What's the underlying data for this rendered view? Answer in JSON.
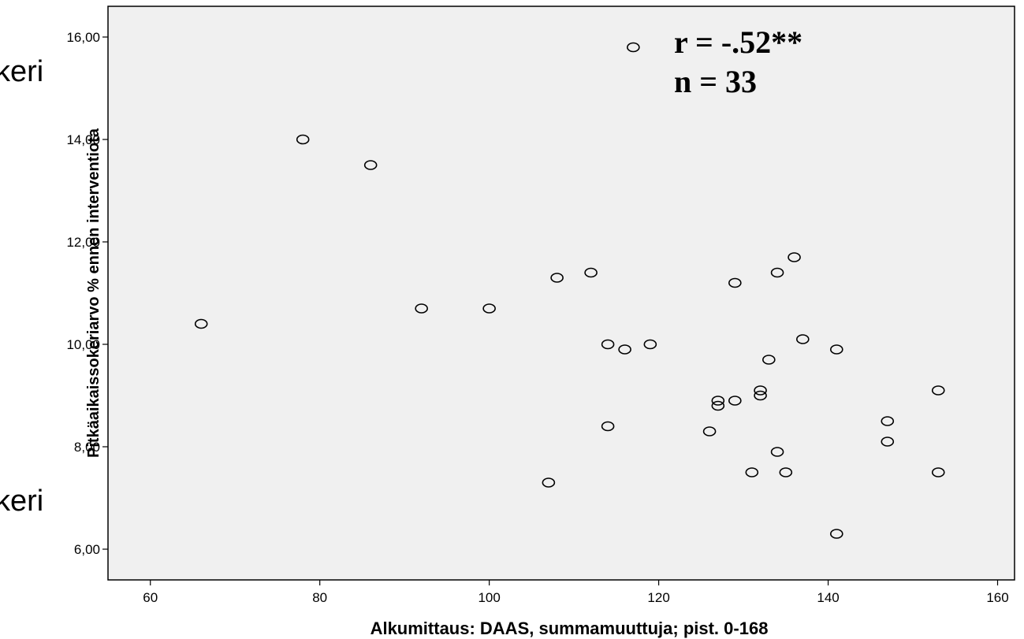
{
  "background_fragments": [
    "keri",
    "keri"
  ],
  "chart_data": {
    "type": "scatter",
    "xlabel": "Alkumittaus: DAAS, summamuuttuja; pist. 0-168",
    "ylabel": "Pitkäaikaissokeriarvo % ennen interventiota",
    "xlim": [
      55,
      162
    ],
    "ylim": [
      5.4,
      16.6
    ],
    "xticks": [
      60,
      80,
      100,
      120,
      140,
      160
    ],
    "xtick_labels": [
      "60",
      "80",
      "100",
      "120",
      "140",
      "160"
    ],
    "yticks": [
      6,
      8,
      10,
      12,
      14,
      16
    ],
    "ytick_labels": [
      "6,00",
      "8,00",
      "10,00",
      "12,00",
      "14,00",
      "16,00"
    ],
    "annotations": [
      "r = -.52**",
      "n = 33"
    ],
    "grid": false,
    "plot_background": "#f0f0f0",
    "marker": "open-circle",
    "points": [
      {
        "x": 66,
        "y": 10.4
      },
      {
        "x": 78,
        "y": 14.0
      },
      {
        "x": 86,
        "y": 13.5
      },
      {
        "x": 92,
        "y": 10.7
      },
      {
        "x": 100,
        "y": 10.7
      },
      {
        "x": 107,
        "y": 7.3
      },
      {
        "x": 108,
        "y": 11.3
      },
      {
        "x": 112,
        "y": 11.4
      },
      {
        "x": 114,
        "y": 10.0
      },
      {
        "x": 114,
        "y": 8.4
      },
      {
        "x": 116,
        "y": 9.9
      },
      {
        "x": 117,
        "y": 15.8
      },
      {
        "x": 119,
        "y": 10.0
      },
      {
        "x": 126,
        "y": 8.3
      },
      {
        "x": 127,
        "y": 8.9
      },
      {
        "x": 127,
        "y": 8.8
      },
      {
        "x": 129,
        "y": 11.2
      },
      {
        "x": 129,
        "y": 8.9
      },
      {
        "x": 131,
        "y": 7.5
      },
      {
        "x": 132,
        "y": 9.1
      },
      {
        "x": 132,
        "y": 9.0
      },
      {
        "x": 133,
        "y": 9.7
      },
      {
        "x": 134,
        "y": 11.4
      },
      {
        "x": 134,
        "y": 7.9
      },
      {
        "x": 135,
        "y": 7.5
      },
      {
        "x": 136,
        "y": 11.7
      },
      {
        "x": 137,
        "y": 10.1
      },
      {
        "x": 141,
        "y": 9.9
      },
      {
        "x": 141,
        "y": 6.3
      },
      {
        "x": 147,
        "y": 8.5
      },
      {
        "x": 147,
        "y": 8.1
      },
      {
        "x": 153,
        "y": 9.1
      },
      {
        "x": 153,
        "y": 7.5
      }
    ]
  }
}
